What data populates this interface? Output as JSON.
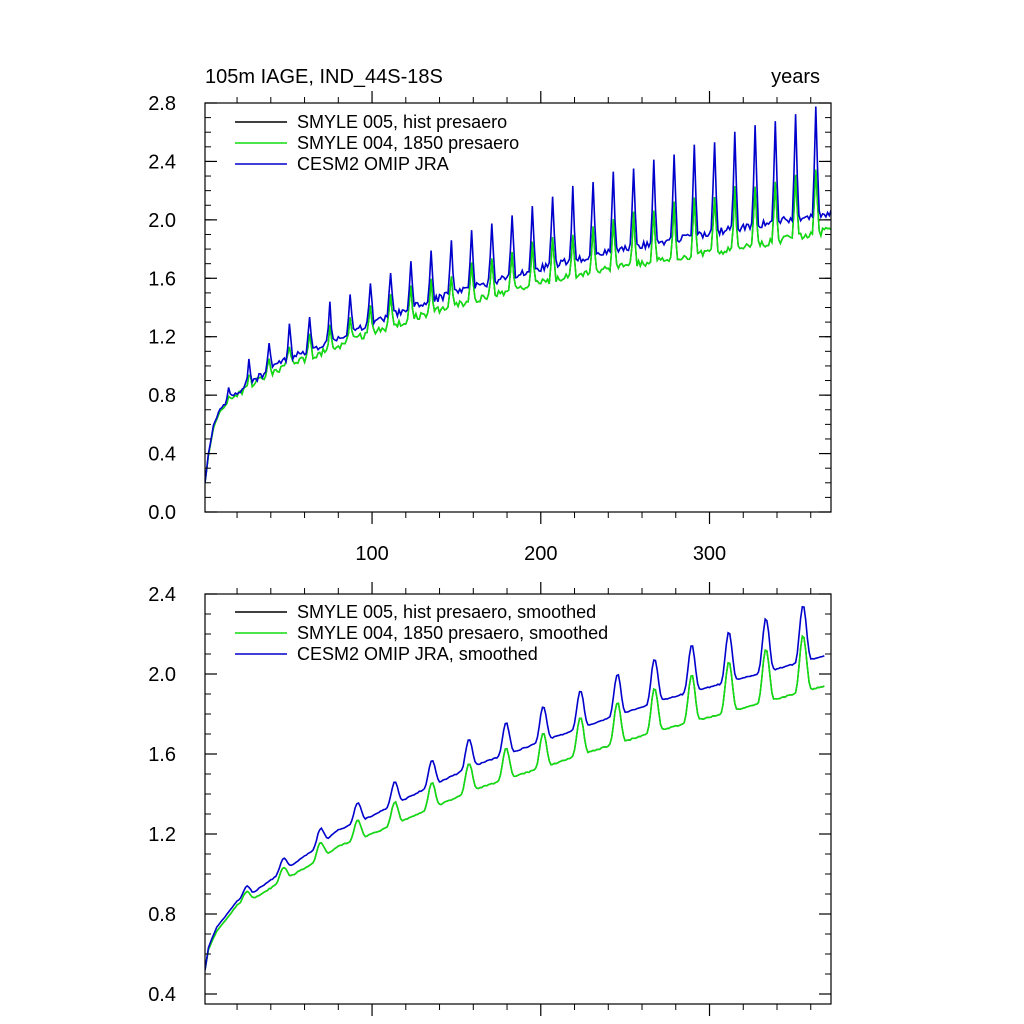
{
  "colors": {
    "axis": "#000000",
    "series_black": "#000000",
    "series_green": "#11dd11",
    "series_blue": "#0000cc"
  },
  "chart_data": [
    {
      "type": "line",
      "title_left": "105m IAGE, IND_44S-18S",
      "title_right": "years",
      "xlabel": "",
      "ylabel": "",
      "xlim": [
        1,
        372
      ],
      "ylim": [
        0.0,
        2.8
      ],
      "grid": false,
      "legend_position": "top-left",
      "x_ticks": [
        "100",
        "200",
        "300"
      ],
      "y_ticks": [
        "0.0",
        "0.4",
        "0.8",
        "1.2",
        "1.6",
        "2.0",
        "2.4",
        "2.8"
      ],
      "series": [
        {
          "name": "SMYLE 005, hist presaero",
          "color": "#000000",
          "approx_points": [
            [
              1,
              0.2
            ],
            [
              3,
              0.38
            ],
            [
              6,
              0.58
            ],
            [
              10,
              0.7
            ],
            [
              20,
              0.82
            ],
            [
              30,
              0.91
            ],
            [
              50,
              1.04
            ],
            [
              70,
              1.12
            ],
            [
              100,
              1.26
            ],
            [
              130,
              1.38
            ],
            [
              160,
              1.48
            ],
            [
              200,
              1.6
            ],
            [
              240,
              1.69
            ],
            [
              280,
              1.77
            ],
            [
              320,
              1.84
            ],
            [
              372,
              1.96
            ]
          ]
        },
        {
          "name": "SMYLE 004, 1850 presaero",
          "color": "#11dd11",
          "approx_points": [
            [
              1,
              0.2
            ],
            [
              3,
              0.38
            ],
            [
              6,
              0.58
            ],
            [
              10,
              0.7
            ],
            [
              20,
              0.82
            ],
            [
              30,
              0.91
            ],
            [
              50,
              1.04
            ],
            [
              70,
              1.12
            ],
            [
              100,
              1.26
            ],
            [
              130,
              1.38
            ],
            [
              160,
              1.48
            ],
            [
              200,
              1.6
            ],
            [
              240,
              1.69
            ],
            [
              280,
              1.77
            ],
            [
              320,
              1.84
            ],
            [
              372,
              1.96
            ]
          ]
        },
        {
          "name": "CESM2 OMIP JRA",
          "color": "#0000cc",
          "approx_points": [
            [
              1,
              0.2
            ],
            [
              3,
              0.39
            ],
            [
              6,
              0.6
            ],
            [
              10,
              0.72
            ],
            [
              20,
              0.84
            ],
            [
              30,
              0.93
            ],
            [
              50,
              1.08
            ],
            [
              70,
              1.17
            ],
            [
              100,
              1.32
            ],
            [
              130,
              1.46
            ],
            [
              160,
              1.57
            ],
            [
              200,
              1.7
            ],
            [
              240,
              1.81
            ],
            [
              280,
              1.9
            ],
            [
              320,
              1.98
            ],
            [
              372,
              2.08
            ]
          ]
        }
      ]
    },
    {
      "type": "line",
      "xlabel": "",
      "ylabel": "",
      "xlim": [
        1,
        372
      ],
      "ylim": [
        0.35,
        2.4
      ],
      "grid": false,
      "legend_position": "top-left",
      "y_ticks": [
        "0.4",
        "0.8",
        "1.2",
        "1.6",
        "2.0",
        "2.4"
      ],
      "series": [
        {
          "name": "SMYLE 005, hist presaero, smoothed",
          "color": "#000000",
          "approx_points": [
            [
              1,
              0.52
            ],
            [
              3,
              0.62
            ],
            [
              8,
              0.72
            ],
            [
              15,
              0.8
            ],
            [
              20,
              0.86
            ],
            [
              30,
              0.9
            ],
            [
              50,
              1.0
            ],
            [
              70,
              1.1
            ],
            [
              80,
              1.16
            ],
            [
              100,
              1.22
            ],
            [
              130,
              1.33
            ],
            [
              160,
              1.44
            ],
            [
              200,
              1.55
            ],
            [
              240,
              1.66
            ],
            [
              280,
              1.76
            ],
            [
              320,
              1.85
            ],
            [
              368,
              1.96
            ]
          ]
        },
        {
          "name": "SMYLE 004, 1850 presaero, smoothed",
          "color": "#11dd11",
          "approx_points": [
            [
              1,
              0.52
            ],
            [
              3,
              0.62
            ],
            [
              8,
              0.72
            ],
            [
              15,
              0.8
            ],
            [
              20,
              0.86
            ],
            [
              30,
              0.9
            ],
            [
              50,
              1.0
            ],
            [
              70,
              1.1
            ],
            [
              80,
              1.16
            ],
            [
              100,
              1.22
            ],
            [
              130,
              1.33
            ],
            [
              160,
              1.44
            ],
            [
              200,
              1.55
            ],
            [
              240,
              1.66
            ],
            [
              280,
              1.76
            ],
            [
              320,
              1.85
            ],
            [
              368,
              1.96
            ]
          ]
        },
        {
          "name": "CESM2 OMIP JRA, smoothed",
          "color": "#0000cc",
          "approx_points": [
            [
              1,
              0.52
            ],
            [
              3,
              0.63
            ],
            [
              8,
              0.74
            ],
            [
              15,
              0.82
            ],
            [
              20,
              0.88
            ],
            [
              30,
              0.93
            ],
            [
              50,
              1.05
            ],
            [
              70,
              1.17
            ],
            [
              80,
              1.24
            ],
            [
              100,
              1.31
            ],
            [
              130,
              1.44
            ],
            [
              160,
              1.56
            ],
            [
              200,
              1.68
            ],
            [
              240,
              1.8
            ],
            [
              280,
              1.91
            ],
            [
              320,
              2.0
            ],
            [
              368,
              2.11
            ]
          ]
        }
      ]
    }
  ]
}
